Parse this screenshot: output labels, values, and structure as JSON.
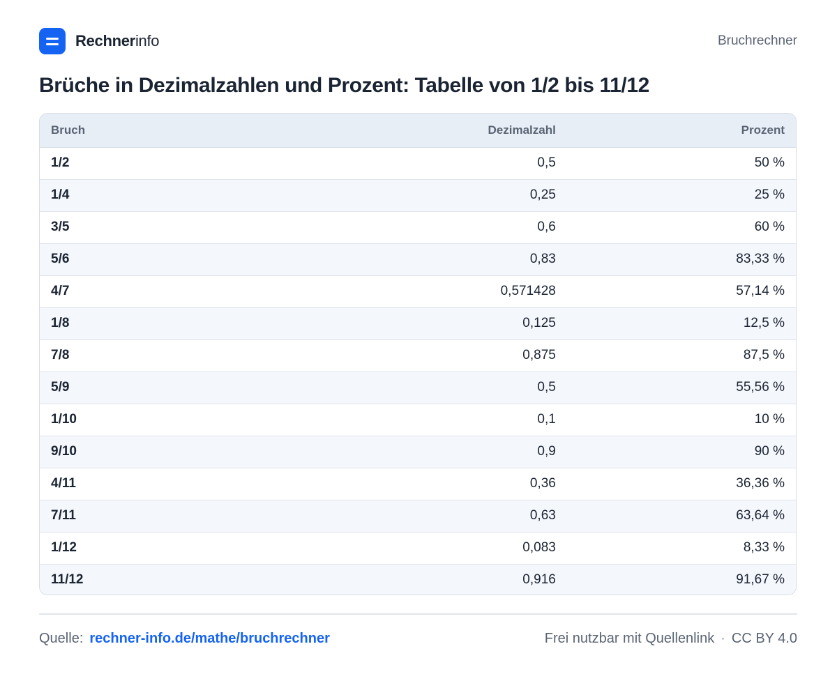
{
  "header": {
    "brand_strong": "Rechner",
    "brand_light": "info",
    "nav_link": "Bruchrechner",
    "logo_icon": "menu-bars-icon",
    "accent_color": "#1463f3"
  },
  "title": "Brüche in Dezimalzahlen und Prozent: Tabelle von 1/2 bis 11/12",
  "table": {
    "columns": [
      "Bruch",
      "Dezimalzahl",
      "Prozent"
    ],
    "rows": [
      [
        "1/2",
        "0,5",
        "50 %"
      ],
      [
        "1/4",
        "0,25",
        "25 %"
      ],
      [
        "3/5",
        "0,6",
        "60 %"
      ],
      [
        "5/6",
        "0,83",
        "83,33 %"
      ],
      [
        "4/7",
        "0,571428",
        "57,14 %"
      ],
      [
        "1/8",
        "0,125",
        "12,5 %"
      ],
      [
        "7/8",
        "0,875",
        "87,5 %"
      ],
      [
        "5/9",
        "0,5",
        "55,56 %"
      ],
      [
        "1/10",
        "0,1",
        "10 %"
      ],
      [
        "9/10",
        "0,9",
        "90 %"
      ],
      [
        "4/11",
        "0,36",
        "36,36 %"
      ],
      [
        "7/11",
        "0,63",
        "63,64 %"
      ],
      [
        "1/12",
        "0,083",
        "8,33 %"
      ],
      [
        "11/12",
        "0,916",
        "91,67 %"
      ]
    ]
  },
  "footer": {
    "source_label": "Quelle:",
    "source_link": "rechner-info.de/mathe/bruchrechner",
    "usage": "Frei nutzbar mit Quellenlink",
    "separator": "·",
    "license": "CC BY 4.0"
  }
}
